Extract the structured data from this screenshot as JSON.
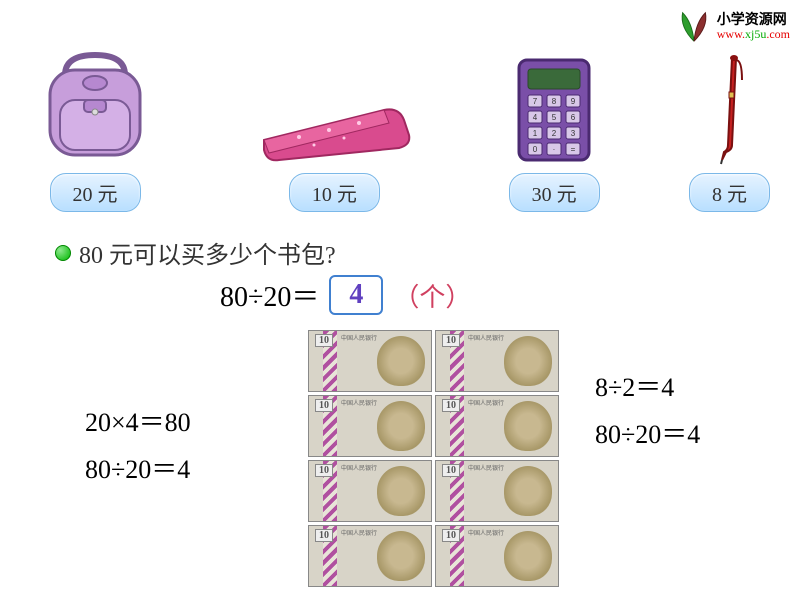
{
  "logo": {
    "title": "小学资源网",
    "url_prefix": "www.",
    "url_domain": "xj5u",
    "url_suffix": ".com",
    "title_color": "#333333",
    "leaf_colors": [
      "#2e9e2e",
      "#8b2e2e"
    ]
  },
  "products": [
    {
      "name": "backpack",
      "price_text": "20 元",
      "main_color": "#c79edb",
      "accent": "#9b6fb8"
    },
    {
      "name": "pencil-case",
      "price_text": "10 元",
      "main_color": "#d94b8e",
      "accent": "#c02e72"
    },
    {
      "name": "calculator",
      "price_text": "30 元",
      "main_color": "#7a4fa8",
      "accent": "#5a3580"
    },
    {
      "name": "pen",
      "price_text": "8 元",
      "main_color": "#c62020",
      "accent": "#8a1010"
    }
  ],
  "question_text": "80 元可以买多少个书包?",
  "main_equation": {
    "lhs": "80÷20＝",
    "answer": "4",
    "unit": "（个）",
    "answer_color": "#6040c0",
    "box_border": "#4080d0"
  },
  "left_equations": [
    "20×4＝80",
    "80÷20＝4"
  ],
  "right_equations": [
    "8÷2＝4",
    "80÷20＝4"
  ],
  "banknote": {
    "count": 8,
    "denom": "10",
    "label": "中国人民银行",
    "bg_color": "#d8d4c8",
    "stripe_color": "#b050a0"
  },
  "price_tag_style": {
    "bg_top": "#e6f3ff",
    "bg_bottom": "#b8dfff",
    "border": "#7bb8e8"
  }
}
